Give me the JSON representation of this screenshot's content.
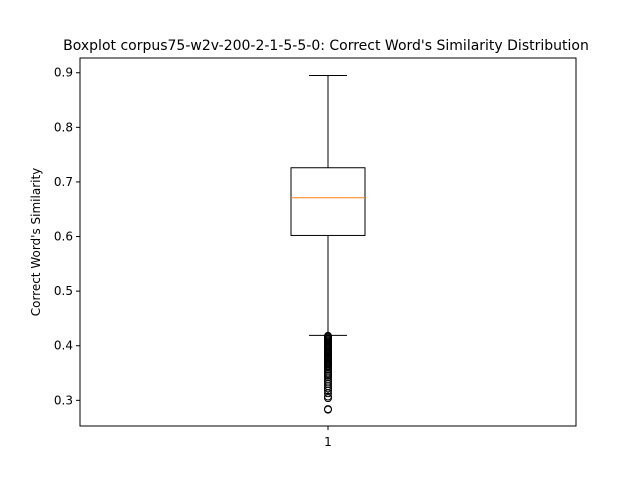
{
  "chart_data": {
    "type": "box",
    "title": "Boxplot corpus75-w2v-200-2-1-5-5-0: Correct Word's Similarity Distribution",
    "xlabel": "",
    "ylabel": "Correct Word's Similarity",
    "x_ticks": [
      "1"
    ],
    "ylim": [
      0.253,
      0.927
    ],
    "y_ticks": [
      0.3,
      0.4,
      0.5,
      0.6,
      0.7,
      0.8,
      0.9
    ],
    "y_tick_labels": [
      "0.3",
      "0.4",
      "0.5",
      "0.6",
      "0.7",
      "0.8",
      "0.9"
    ],
    "grid": false,
    "boxes": [
      {
        "category": "1",
        "whisker_low": 0.419,
        "q1": 0.602,
        "median": 0.671,
        "q3": 0.726,
        "whisker_high": 0.895,
        "outliers": [
          0.418,
          0.416,
          0.414,
          0.412,
          0.41,
          0.408,
          0.406,
          0.404,
          0.402,
          0.4,
          0.398,
          0.396,
          0.394,
          0.392,
          0.39,
          0.388,
          0.386,
          0.384,
          0.382,
          0.38,
          0.378,
          0.376,
          0.374,
          0.372,
          0.37,
          0.368,
          0.366,
          0.364,
          0.362,
          0.36,
          0.357,
          0.354,
          0.351,
          0.348,
          0.345,
          0.342,
          0.338,
          0.334,
          0.33,
          0.326,
          0.322,
          0.318,
          0.313,
          0.307,
          0.304,
          0.284,
          0.283
        ]
      }
    ],
    "colors": {
      "box": "#000000",
      "median": "#ff7f0e",
      "outlier": "#000000"
    }
  }
}
